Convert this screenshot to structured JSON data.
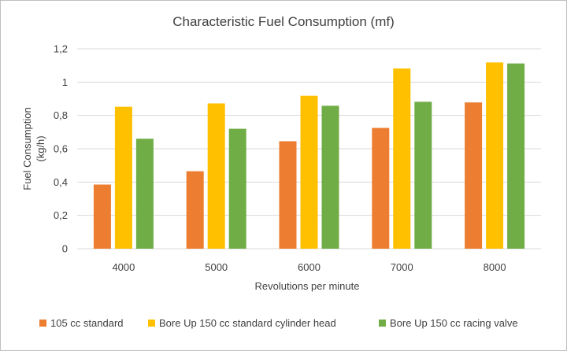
{
  "chart_data": {
    "type": "bar",
    "title": "Characteristic Fuel Consumption (mf)",
    "xlabel": "Revolutions per minute",
    "ylabel_lines": [
      "Fuel Consumption",
      "(kg/h)"
    ],
    "categories": [
      "4000",
      "5000",
      "6000",
      "7000",
      "8000"
    ],
    "ylim": [
      0,
      1.2
    ],
    "yticks": [
      0,
      0.2,
      0.4,
      0.6,
      0.8,
      1,
      1.2
    ],
    "ytick_labels": [
      "0",
      "0,2",
      "0,4",
      "0,6",
      "0,8",
      "1",
      "1,2"
    ],
    "grid": true,
    "legend_position": "bottom",
    "series": [
      {
        "name": "105 cc standard",
        "color": "#ed7d31",
        "values": [
          0.385,
          0.465,
          0.645,
          0.725,
          0.878
        ]
      },
      {
        "name": "Bore Up 150 cc standard cylinder head",
        "color": "#ffc000",
        "values": [
          0.852,
          0.872,
          0.918,
          1.082,
          1.118
        ]
      },
      {
        "name": "Bore Up 150 cc racing valve",
        "color": "#70ad47",
        "values": [
          0.66,
          0.72,
          0.858,
          0.882,
          1.112
        ]
      }
    ]
  }
}
